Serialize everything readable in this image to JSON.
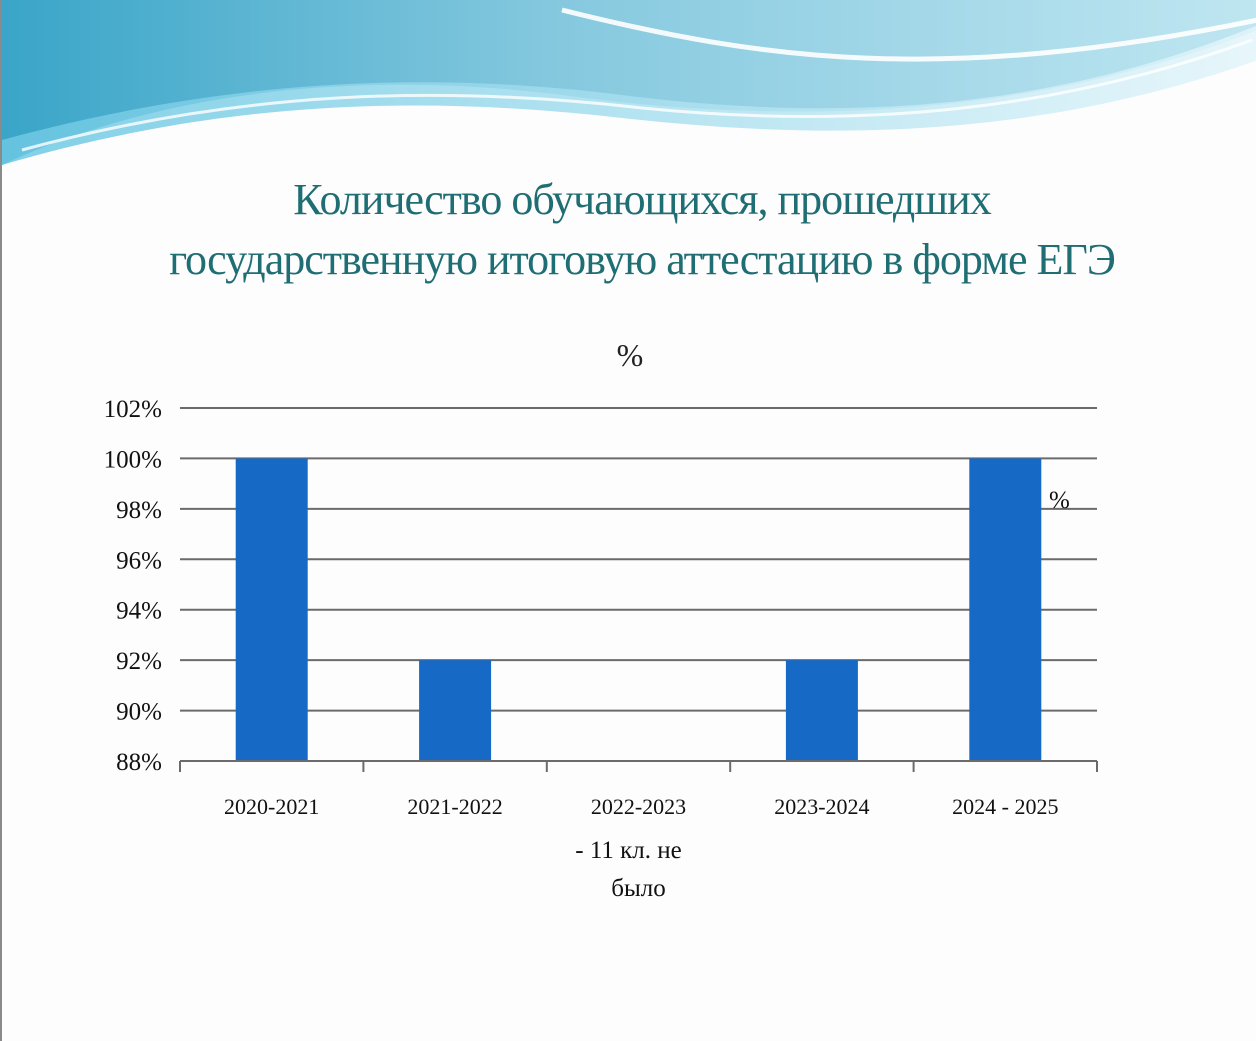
{
  "slide": {
    "title_line1": "Количество обучающихся, прошедших",
    "title_line2": "государственную  итоговую  аттестацию в  форме ЕГЭ"
  },
  "colors": {
    "bar": "#1769c6",
    "gridline": "#6b6b6b",
    "title": "#1f6e73"
  },
  "chart_data": {
    "type": "bar",
    "title": "%",
    "categories": [
      "2020-2021",
      "2021-2022",
      "2022-2023",
      "2023-2024",
      "2024 - 2025"
    ],
    "category_notes": [
      "",
      "",
      "-    11 кл. не было",
      "",
      ""
    ],
    "values": [
      100,
      92,
      null,
      92,
      100
    ],
    "y_unit": "%",
    "ylim": [
      88,
      102
    ],
    "yticks": [
      88,
      90,
      92,
      94,
      96,
      98,
      100,
      102
    ],
    "ytick_labels": [
      "88%",
      "90%",
      "92%",
      "94%",
      "96%",
      "98%",
      "100%",
      "102%"
    ],
    "grid": true,
    "legend": "none",
    "stray_label": "%"
  }
}
